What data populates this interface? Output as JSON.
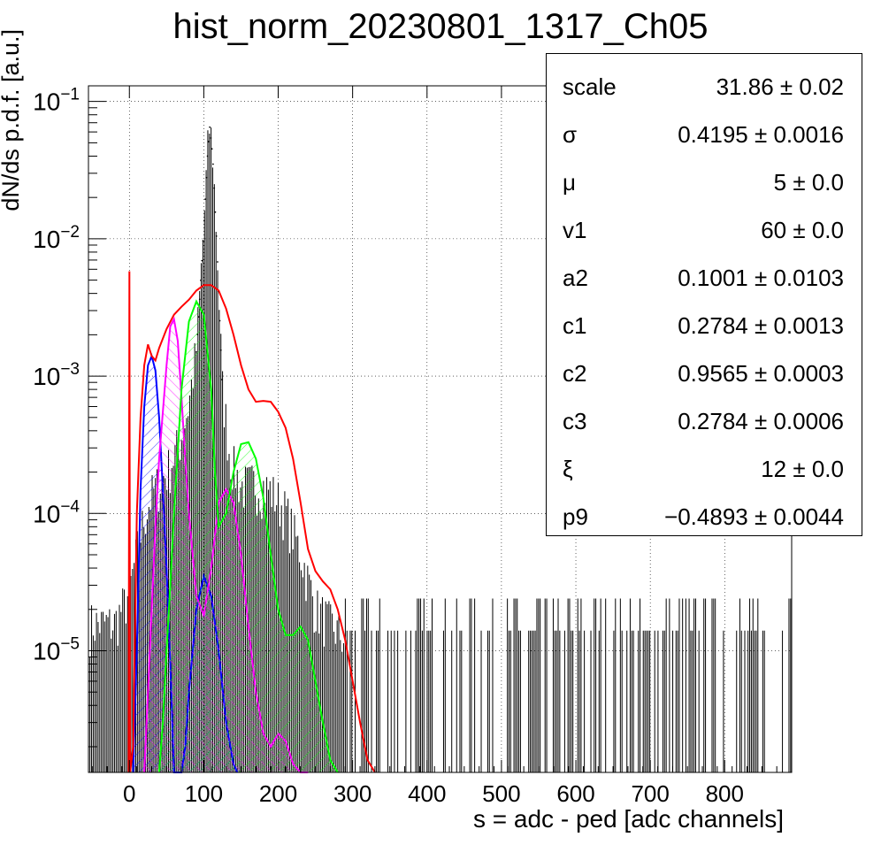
{
  "chart_data": {
    "type": "line",
    "title": "hist_norm_20230801_1317_Ch05",
    "xlabel": "s = adc - ped [adc channels]",
    "ylabel": "dN/ds p.d.f. [a.u.]",
    "xlim": [
      -55,
      890
    ],
    "ylim": [
      1.3e-06,
      0.13
    ],
    "yscale": "log",
    "grid": true,
    "x_ticks": [
      "0",
      "100",
      "200",
      "300",
      "400",
      "500",
      "600",
      "700",
      "800"
    ],
    "y_ticks": [
      "10^-5",
      "10^-4",
      "10^-3",
      "10^-2",
      "10^-1"
    ],
    "series": [
      {
        "name": "",
        "style": "histogram",
        "color": "#000000",
        "x": [
          -45,
          -20,
          0,
          10,
          20,
          30,
          40,
          50,
          60,
          70,
          80,
          90,
          95,
          100,
          105,
          108,
          112,
          118,
          125,
          135,
          150,
          170,
          190,
          210,
          230,
          250,
          270,
          300,
          350,
          400,
          500,
          600,
          700,
          800,
          880
        ],
        "y": [
          1.5e-05,
          1.5e-05,
          2.5e-05,
          5e-05,
          9e-05,
          0.00013,
          0.00016,
          0.00019,
          0.00025,
          0.00035,
          0.0006,
          0.0015,
          0.004,
          0.012,
          0.04,
          0.065,
          0.04,
          0.008,
          0.0008,
          0.00025,
          0.00015,
          0.00016,
          0.00014,
          0.0001,
          5e-05,
          2e-05,
          1.5e-05,
          1e-05,
          1e-05,
          1e-05,
          1e-05,
          1e-05,
          1e-05,
          1e-05,
          1e-05
        ]
      },
      {
        "name": "",
        "style": "line",
        "color": "#ff0000",
        "x": [
          -1,
          0,
          1,
          5,
          10,
          15,
          20,
          25,
          30,
          35,
          40,
          50,
          60,
          70,
          80,
          90,
          100,
          110,
          120,
          130,
          140,
          150,
          160,
          170,
          180,
          190,
          200,
          210,
          220,
          230,
          240,
          250,
          260,
          270,
          280,
          290,
          300,
          310,
          320,
          330
        ],
        "y": [
          1e-06,
          0.0058,
          1e-06,
          2e-06,
          0.0001,
          0.0005,
          0.0012,
          0.0017,
          0.0014,
          0.0013,
          0.0016,
          0.0022,
          0.0028,
          0.0032,
          0.0036,
          0.0042,
          0.0046,
          0.0046,
          0.0042,
          0.0031,
          0.002,
          0.0012,
          0.0008,
          0.00065,
          0.00066,
          0.00065,
          0.00055,
          0.00042,
          0.00025,
          0.00012,
          5.5e-05,
          3.8e-05,
          3.2e-05,
          2.8e-05,
          2e-05,
          1.2e-05,
          6e-06,
          3e-06,
          1.6e-06,
          1e-06
        ]
      },
      {
        "name": "",
        "style": "hatched",
        "color": "#0000ff",
        "x": [
          5,
          10,
          15,
          20,
          25,
          30,
          35,
          40,
          45,
          50,
          55,
          60,
          65,
          70,
          75,
          80,
          90,
          100,
          110,
          120,
          130,
          140,
          145
        ],
        "y": [
          1.3e-06,
          1e-05,
          0.00015,
          0.0006,
          0.0012,
          0.0014,
          0.0011,
          0.0005,
          0.00015,
          4e-05,
          8e-06,
          1.3e-06,
          1.3e-06,
          1.3e-06,
          2e-06,
          5e-06,
          2e-05,
          3.5e-05,
          2.5e-05,
          1e-05,
          3e-06,
          1.5e-06,
          1.3e-06
        ]
      },
      {
        "name": "",
        "style": "hatched",
        "color": "#ff00ff",
        "x": [
          20,
          25,
          30,
          35,
          40,
          50,
          55,
          60,
          65,
          70,
          75,
          80,
          90,
          100,
          110,
          120,
          130,
          140,
          150,
          160,
          170,
          180,
          190,
          200,
          210,
          220,
          230,
          240
        ],
        "y": [
          1.3e-06,
          5e-06,
          2e-05,
          8e-05,
          0.00025,
          0.0012,
          0.0023,
          0.0026,
          0.0018,
          0.0007,
          0.00025,
          0.0001,
          2.5e-05,
          1.8e-05,
          4e-05,
          0.00012,
          0.00015,
          0.00012,
          5e-05,
          1.5e-05,
          5e-06,
          2.5e-06,
          2e-06,
          2.5e-06,
          2.2e-06,
          1.5e-06,
          1.3e-06,
          1.3e-06
        ]
      },
      {
        "name": "",
        "style": "hatched",
        "color": "#00ff00",
        "x": [
          40,
          45,
          50,
          55,
          60,
          70,
          80,
          90,
          100,
          110,
          115,
          120,
          130,
          140,
          150,
          160,
          170,
          180,
          190,
          200,
          210,
          220,
          230,
          240,
          250,
          260,
          270,
          280
        ],
        "y": [
          1.3e-06,
          3e-06,
          1e-05,
          3e-05,
          0.0001,
          0.0008,
          0.0025,
          0.0035,
          0.0028,
          0.0008,
          0.0002,
          8e-05,
          0.0001,
          0.0002,
          0.00032,
          0.00033,
          0.00025,
          0.00013,
          5e-05,
          2e-05,
          1.3e-05,
          1.3e-05,
          1.5e-05,
          1.2e-05,
          6e-06,
          3e-06,
          1.6e-06,
          1.3e-06
        ]
      }
    ]
  },
  "stats": [
    {
      "name": "scale",
      "value": "31.86",
      "error": "0.02"
    },
    {
      "name": "σ",
      "value": "0.4195",
      "error": "0.0016"
    },
    {
      "name": "μ",
      "value": "5",
      "error": "0.0"
    },
    {
      "name": "v1",
      "value": "60",
      "error": "0.0"
    },
    {
      "name": "a2",
      "value": "0.1001",
      "error": "0.0103"
    },
    {
      "name": "c1",
      "value": "0.2784",
      "error": "0.0013"
    },
    {
      "name": "c2",
      "value": "0.9565",
      "error": "0.0003"
    },
    {
      "name": "c3",
      "value": "0.2784",
      "error": "0.0006"
    },
    {
      "name": "ξ",
      "value": "12",
      "error": "0.0"
    },
    {
      "name": "p9",
      "value": "−0.4893",
      "error": "0.0044"
    }
  ]
}
